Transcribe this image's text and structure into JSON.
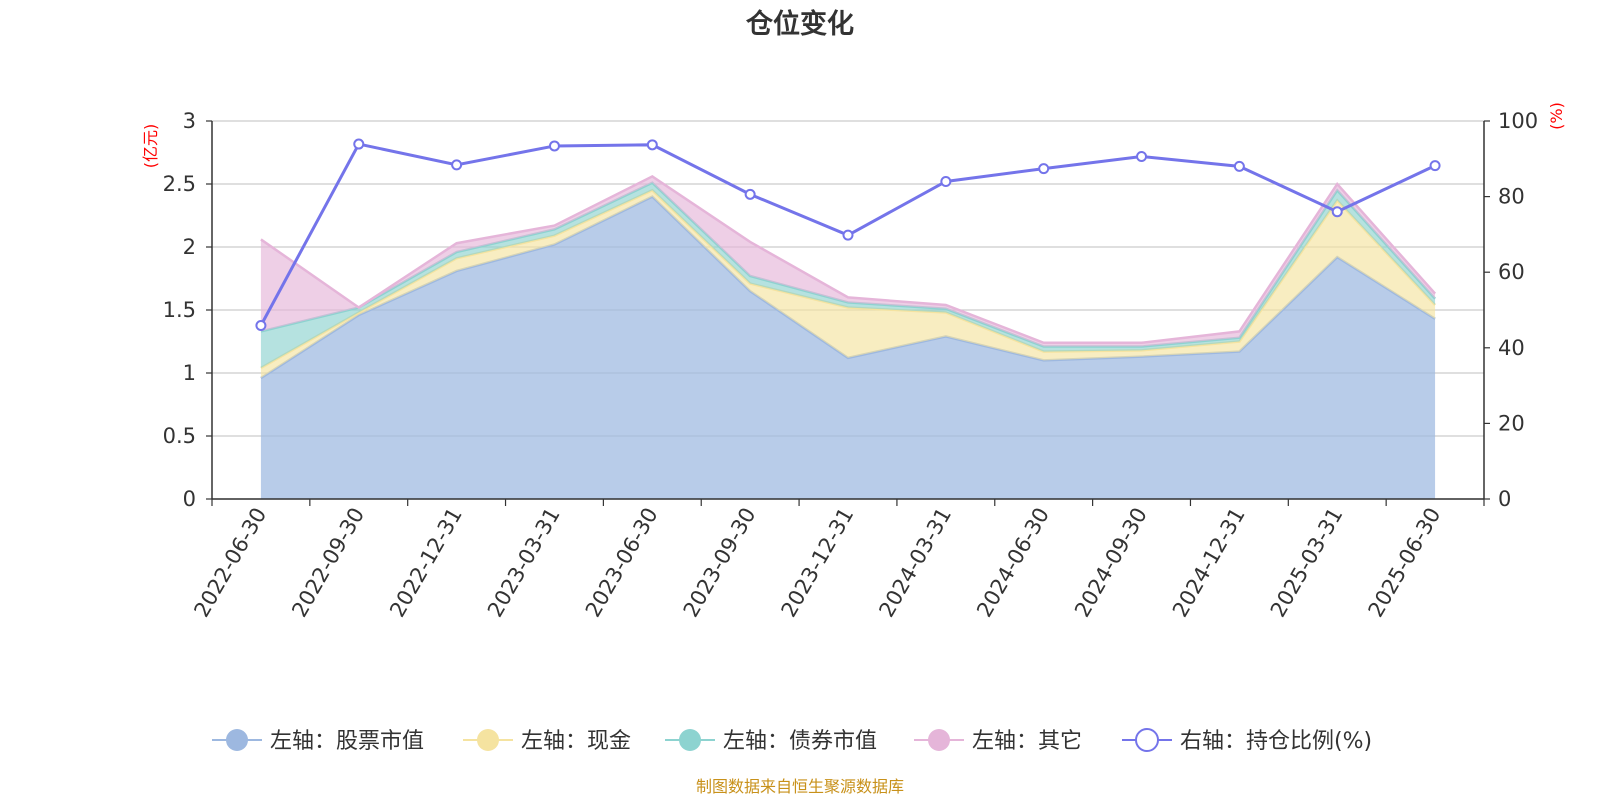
{
  "chart_data": {
    "type": "area",
    "title": "仓位变化",
    "categories": [
      "2022-06-30",
      "2022-09-30",
      "2022-12-31",
      "2023-03-31",
      "2023-06-30",
      "2023-09-30",
      "2023-12-31",
      "2024-03-31",
      "2024-06-30",
      "2024-09-30",
      "2024-12-31",
      "2025-03-31",
      "2025-06-30"
    ],
    "left_axis": {
      "unit": "(亿元)",
      "ylim": [
        0,
        3
      ],
      "ticks": [
        "0",
        "0.5",
        "1",
        "1.5",
        "2",
        "2.5",
        "3"
      ]
    },
    "right_axis": {
      "unit": "(%)",
      "ylim": [
        0,
        100
      ],
      "ticks": [
        "0",
        "20",
        "40",
        "60",
        "80",
        "100"
      ]
    },
    "stacked": true,
    "grid": true,
    "legend_position": "bottom",
    "series": [
      {
        "name": "左轴：股票市值",
        "axis": "left",
        "kind": "area",
        "color": "#9db8e0",
        "values": [
          0.96,
          1.46,
          1.81,
          2.02,
          2.4,
          1.65,
          1.12,
          1.29,
          1.1,
          1.13,
          1.17,
          1.92,
          1.43
        ]
      },
      {
        "name": "左轴：现金",
        "axis": "left",
        "kind": "area",
        "color": "#f5e3a0",
        "values": [
          0.08,
          0.02,
          0.1,
          0.07,
          0.05,
          0.06,
          0.4,
          0.19,
          0.07,
          0.05,
          0.08,
          0.45,
          0.11
        ]
      },
      {
        "name": "左轴：债券市值",
        "axis": "left",
        "kind": "area",
        "color": "#8dd3d0",
        "values": [
          0.29,
          0.04,
          0.05,
          0.05,
          0.06,
          0.06,
          0.04,
          0.03,
          0.04,
          0.03,
          0.03,
          0.08,
          0.05
        ]
      },
      {
        "name": "左轴：其它",
        "axis": "left",
        "kind": "area",
        "color": "#e5b5d9",
        "values": [
          0.73,
          0.0,
          0.07,
          0.03,
          0.05,
          0.27,
          0.04,
          0.03,
          0.03,
          0.03,
          0.05,
          0.05,
          0.04
        ]
      },
      {
        "name": "右轴：持仓比例(%)",
        "axis": "right",
        "kind": "line",
        "color": "#7474ea",
        "values": [
          45.9,
          93.9,
          88.4,
          93.4,
          93.7,
          80.6,
          69.8,
          84.0,
          87.4,
          90.6,
          88.0,
          76.0,
          88.2
        ]
      }
    ],
    "source": "制图数据来自恒生聚源数据库"
  }
}
